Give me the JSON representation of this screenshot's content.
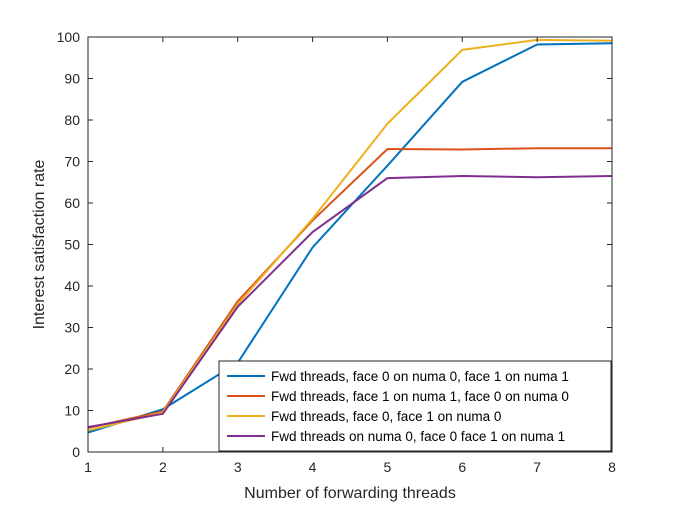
{
  "chart_data": {
    "type": "line",
    "title": "",
    "xlabel": "Number of forwarding threads",
    "ylabel": "Interest satisfaction rate",
    "x": [
      1,
      2,
      3,
      4,
      5,
      6,
      7,
      8
    ],
    "xlim": [
      1,
      8
    ],
    "ylim": [
      0,
      100
    ],
    "xticks": [
      "1",
      "2",
      "3",
      "4",
      "5",
      "6",
      "7",
      "8"
    ],
    "yticks": [
      "0",
      "10",
      "20",
      "30",
      "40",
      "50",
      "60",
      "70",
      "80",
      "90",
      "100"
    ],
    "grid": false,
    "legend_position": "bottom-right",
    "series": [
      {
        "name": "Fwd threads, face 0 on numa 0, face 1 on numa 1",
        "color": "#0072BD",
        "values": [
          4.7,
          10.3,
          21.5,
          49.3,
          69.0,
          89.2,
          98.2,
          98.5
        ]
      },
      {
        "name": "Fwd threads, face 1 on numa 1, face 0 on numa 0",
        "color": "#D95319",
        "values": [
          5.8,
          9.8,
          36.3,
          55.8,
          73.0,
          72.9,
          73.2,
          73.2
        ]
      },
      {
        "name": "Fwd threads, face 0, face 1 on numa 0",
        "color": "#EDB120",
        "values": [
          5.2,
          9.5,
          35.6,
          56.2,
          79.1,
          96.9,
          99.3,
          99.1
        ]
      },
      {
        "name": "Fwd threads on numa 0, face 0 face 1 on numa 1",
        "color": "#7E2F8E",
        "values": [
          6.0,
          9.2,
          35.0,
          53.0,
          66.0,
          66.5,
          66.2,
          66.5
        ]
      }
    ]
  }
}
